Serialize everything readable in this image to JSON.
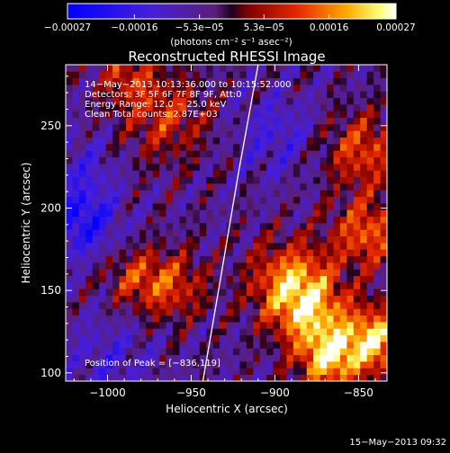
{
  "chart_data": {
    "type": "heatmap",
    "title": "Reconstructed RHESSI Image",
    "xlabel": "Heliocentric X (arcsec)",
    "ylabel": "Heliocentric Y (arcsec)",
    "xlim": [
      -1025,
      -833
    ],
    "ylim": [
      95,
      287
    ],
    "x_ticks": [
      {
        "value": -1000,
        "label": "−1000"
      },
      {
        "value": -950,
        "label": "−950"
      },
      {
        "value": -900,
        "label": "−900"
      },
      {
        "value": -850,
        "label": "−850"
      }
    ],
    "y_ticks": [
      {
        "value": 100,
        "label": "100"
      },
      {
        "value": 150,
        "label": "150"
      },
      {
        "value": 200,
        "label": "200"
      },
      {
        "value": 250,
        "label": "250"
      }
    ],
    "info_lines": [
      "14−May−2013 10:13:36.000 to 10:15:52.000",
      "Detectors: 3F 5F 6F 7F 8F 9F, Att:0",
      "Energy Range: 12.0 − 25.0 keV",
      "Clean     Total counts: 2.87E+03"
    ],
    "peak_label": "Position of Peak = [−836,119]",
    "peak": [
      -836,
      119
    ],
    "colorbar": {
      "range": [
        -0.00027,
        0.00027
      ],
      "tick_values": [
        -0.00027,
        -0.00016,
        -5.3e-05,
        5.3e-05,
        0.00016,
        0.00027
      ],
      "tick_labels": [
        "−0.00027",
        "−0.00016",
        "−5.3e−05",
        "5.3e−05",
        "0.00016",
        "0.00027"
      ],
      "unit_label": "(photons cm⁻² s⁻¹ asec⁻²)"
    },
    "limb_arc": [
      [
        -943,
        95
      ],
      [
        -932,
        160
      ],
      [
        -922,
        220
      ],
      [
        -910,
        287
      ]
    ],
    "blobs": [
      {
        "x": -890,
        "y": 155,
        "w": 300,
        "amp": 0.00022
      },
      {
        "x": -878,
        "y": 135,
        "w": 250,
        "amp": 0.00018
      },
      {
        "x": -868,
        "y": 108,
        "w": 160,
        "amp": 0.00024
      },
      {
        "x": -840,
        "y": 120,
        "w": 200,
        "amp": 0.00026
      },
      {
        "x": -845,
        "y": 185,
        "w": 220,
        "amp": 0.00018
      },
      {
        "x": -848,
        "y": 235,
        "w": 260,
        "amp": 0.00016
      },
      {
        "x": -962,
        "y": 153,
        "w": 220,
        "amp": 0.00015
      },
      {
        "x": -985,
        "y": 158,
        "w": 150,
        "amp": 0.00011
      },
      {
        "x": -965,
        "y": 255,
        "w": 350,
        "amp": 0.00013
      },
      {
        "x": -988,
        "y": 280,
        "w": 150,
        "amp": 0.00012
      },
      {
        "x": -1015,
        "y": 192,
        "w": 200,
        "amp": -0.00016
      },
      {
        "x": -900,
        "y": 245,
        "w": 300,
        "amp": -8e-05
      },
      {
        "x": -1000,
        "y": 110,
        "w": 300,
        "amp": -7e-05
      },
      {
        "x": -1015,
        "y": 225,
        "w": 200,
        "amp": -7e-05
      }
    ],
    "footer_timestamp": "15−May−2013 09:32"
  }
}
